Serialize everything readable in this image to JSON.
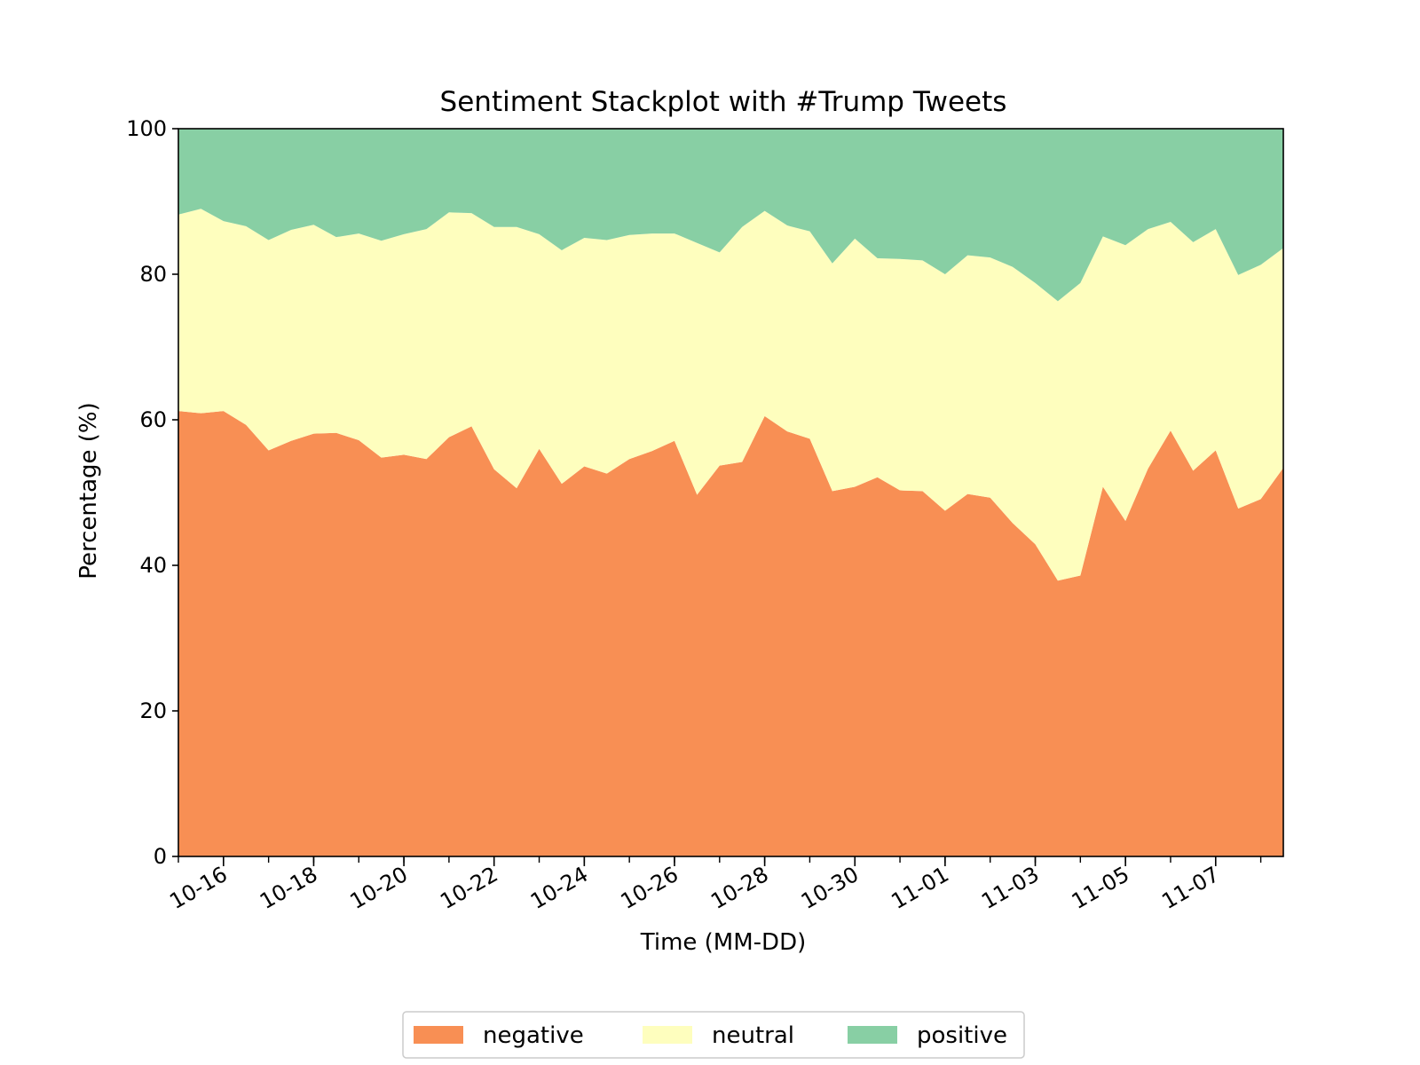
{
  "chart_data": {
    "type": "area",
    "stacked": true,
    "title": "Sentiment Stackplot with #Trump Tweets",
    "xlabel": "Time (MM-DD)",
    "ylabel": "Percentage (%)",
    "ylim": [
      0,
      100
    ],
    "yticks": [
      0,
      20,
      40,
      60,
      80,
      100
    ],
    "xlim": [
      "10-15",
      "11-08"
    ],
    "xticks": [
      "10-16",
      "10-18",
      "10-20",
      "10-22",
      "10-24",
      "10-26",
      "10-28",
      "10-30",
      "11-01",
      "11-03",
      "11-05",
      "11-07"
    ],
    "grid": false,
    "legend_position": "bottom-center",
    "x": [
      "10-15",
      "10-15",
      "10-16",
      "10-16",
      "10-17",
      "10-17",
      "10-18",
      "10-18",
      "10-19",
      "10-19",
      "10-20",
      "10-20",
      "10-21",
      "10-21",
      "10-22",
      "10-22",
      "10-23",
      "10-23",
      "10-24",
      "10-24",
      "10-25",
      "10-25",
      "10-26",
      "10-26",
      "10-27",
      "10-27",
      "10-28",
      "10-28",
      "10-29",
      "10-29",
      "10-30",
      "10-30",
      "10-31",
      "10-31",
      "11-01",
      "11-01",
      "11-02",
      "11-02",
      "11-03",
      "11-03",
      "11-04",
      "11-04",
      "11-05",
      "11-05",
      "11-06",
      "11-06",
      "11-07",
      "11-07",
      "11-08",
      "11-08"
    ],
    "series": [
      {
        "name": "negative",
        "color": "#f88f54",
        "values": [
          61.2,
          60.9,
          61.2,
          59.3,
          55.8,
          57.1,
          58.1,
          58.2,
          57.2,
          54.8,
          55.2,
          54.6,
          57.6,
          59.1,
          53.2,
          50.6,
          56.0,
          51.2,
          53.6,
          52.6,
          54.6,
          55.7,
          57.1,
          49.7,
          53.7,
          54.2,
          60.5,
          58.4,
          57.4,
          50.2,
          50.8,
          52.1,
          50.3,
          50.2,
          47.5,
          49.8,
          49.3,
          45.8,
          42.9,
          37.9,
          38.6,
          50.8,
          46.1,
          53.3,
          58.5,
          53.0,
          55.8,
          47.8,
          49.1,
          53.4
        ]
      },
      {
        "name": "neutral",
        "color": "#fefebe",
        "values": [
          27.0,
          28.1,
          26.1,
          27.3,
          28.9,
          29.0,
          28.7,
          26.9,
          28.4,
          29.8,
          30.3,
          31.6,
          30.9,
          29.3,
          33.3,
          35.9,
          29.5,
          32.1,
          31.4,
          32.1,
          30.8,
          29.9,
          28.5,
          34.6,
          29.3,
          32.3,
          28.2,
          28.3,
          28.5,
          31.3,
          34.1,
          30.1,
          31.8,
          31.7,
          32.5,
          32.8,
          33.0,
          35.2,
          35.9,
          38.4,
          40.2,
          34.4,
          37.9,
          32.9,
          28.7,
          31.4,
          30.4,
          32.1,
          32.2,
          30.2
        ]
      },
      {
        "name": "positive",
        "color": "#88cfa4",
        "values": [
          11.8,
          11.0,
          12.7,
          13.4,
          15.3,
          13.9,
          13.2,
          14.9,
          14.4,
          15.4,
          14.5,
          13.8,
          11.5,
          11.6,
          13.5,
          13.5,
          14.5,
          16.7,
          15.0,
          15.3,
          14.6,
          14.4,
          14.4,
          15.7,
          17.0,
          13.5,
          11.3,
          13.3,
          14.1,
          18.5,
          15.1,
          17.8,
          17.9,
          18.1,
          20.0,
          17.4,
          17.7,
          19.0,
          21.2,
          23.7,
          21.2,
          14.8,
          16.0,
          13.8,
          12.8,
          15.6,
          13.8,
          20.1,
          18.7,
          16.4
        ]
      }
    ]
  }
}
